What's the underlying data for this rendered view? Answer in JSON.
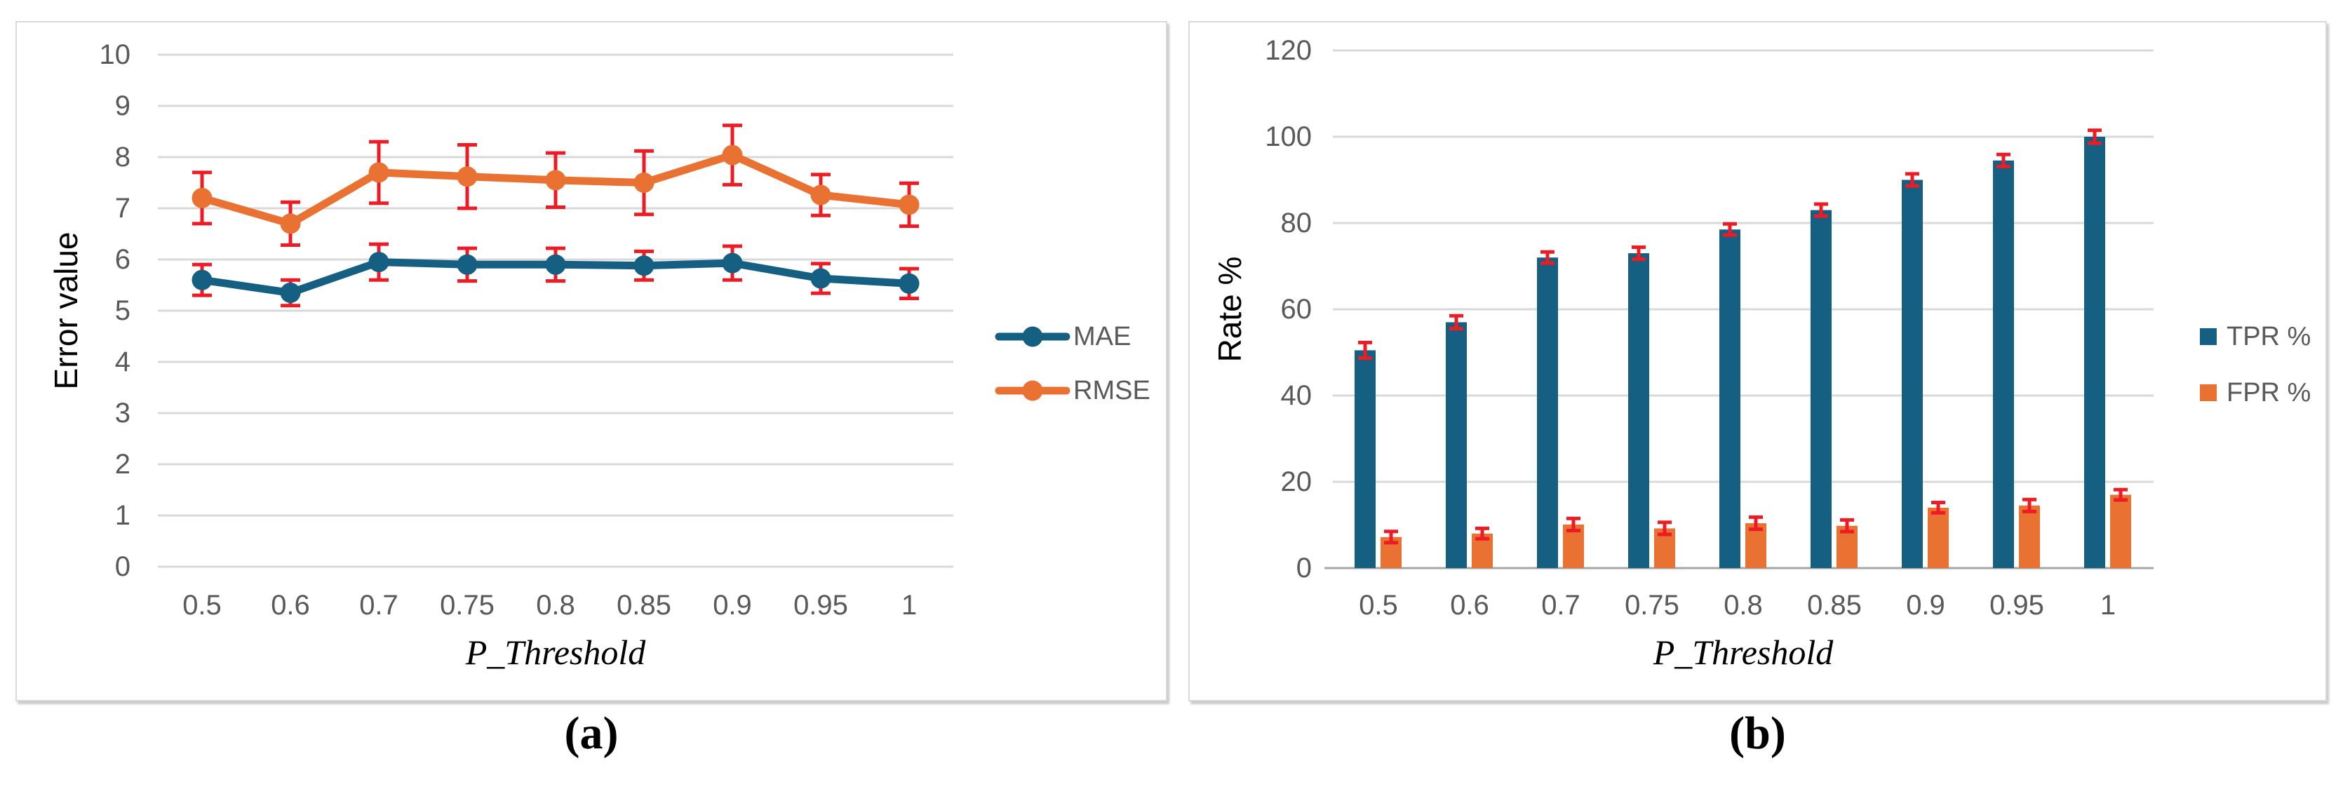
{
  "figure": {
    "captions": {
      "a": "(a)",
      "b": "(b)"
    }
  },
  "colors": {
    "grid": "#D9D9D9",
    "axis_line": "#A6A6A6",
    "tick_text": "#595959",
    "axis_title_text": "#000000",
    "legend_text": "#595959",
    "error_bar": "#ED1C24",
    "series_blue": "#156082",
    "series_orange": "#E97132",
    "panel_border": "#D9D9D9"
  },
  "chart_data": [
    {
      "panel": "a",
      "type": "line",
      "title": "",
      "ylabel": "Error value",
      "xlabel": "P_Threshold",
      "ylim": [
        0,
        10
      ],
      "yticks": [
        0,
        1,
        2,
        3,
        4,
        5,
        6,
        7,
        8,
        9,
        10
      ],
      "categories": [
        "0.5",
        "0.6",
        "0.7",
        "0.75",
        "0.8",
        "0.85",
        "0.9",
        "0.95",
        "1"
      ],
      "grid": true,
      "error_bars": true,
      "legend_position": "right",
      "series": [
        {
          "name": "MAE",
          "color": "#156082",
          "values": [
            5.6,
            5.35,
            5.95,
            5.9,
            5.9,
            5.88,
            5.93,
            5.63,
            5.53
          ],
          "errors": [
            0.3,
            0.25,
            0.35,
            0.32,
            0.32,
            0.28,
            0.33,
            0.29,
            0.29
          ]
        },
        {
          "name": "RMSE",
          "color": "#E97132",
          "values": [
            7.2,
            6.7,
            7.7,
            7.62,
            7.55,
            7.5,
            8.04,
            7.26,
            7.07
          ],
          "errors": [
            0.5,
            0.42,
            0.6,
            0.62,
            0.53,
            0.62,
            0.58,
            0.4,
            0.42
          ]
        }
      ]
    },
    {
      "panel": "b",
      "type": "bar",
      "title": "",
      "ylabel": "Rate %",
      "xlabel": "P_Threshold",
      "ylim": [
        0,
        120
      ],
      "yticks": [
        0,
        20,
        40,
        60,
        80,
        100,
        120
      ],
      "categories": [
        "0.5",
        "0.6",
        "0.7",
        "0.75",
        "0.8",
        "0.85",
        "0.9",
        "0.95",
        "1"
      ],
      "grid": true,
      "error_bars": true,
      "legend_position": "right",
      "series": [
        {
          "name": "TPR %",
          "color": "#156082",
          "values": [
            50.5,
            57,
            72,
            73,
            78.5,
            83,
            90,
            94.5,
            100
          ],
          "errors": [
            1.8,
            1.5,
            1.3,
            1.4,
            1.3,
            1.4,
            1.4,
            1.4,
            1.5
          ]
        },
        {
          "name": "FPR %",
          "color": "#E97132",
          "values": [
            7.2,
            8,
            10.1,
            9.2,
            10.4,
            9.8,
            14,
            14.5,
            17
          ],
          "errors": [
            1.3,
            1.2,
            1.4,
            1.4,
            1.4,
            1.35,
            1.2,
            1.4,
            1.2
          ]
        }
      ]
    }
  ]
}
